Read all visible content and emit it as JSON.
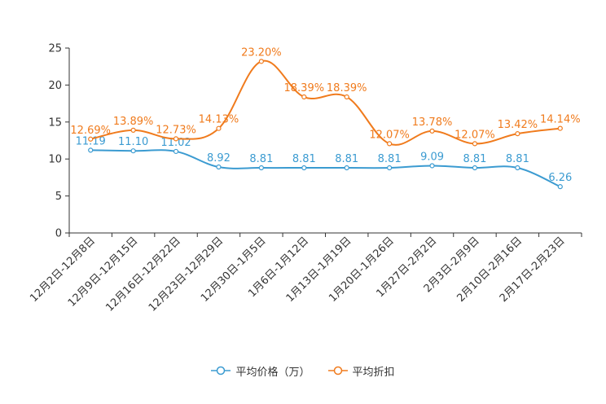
{
  "chart_data": {
    "type": "line",
    "categories": [
      "12月2日-12月8日",
      "12月9日-12月15日",
      "12月16日-12月22日",
      "12月23日-12月29日",
      "12月30日-1月5日",
      "1月6日-1月12日",
      "1月13日-1月19日",
      "1月20日-1月26日",
      "1月27日-2月2日",
      "2月3日-2月9日",
      "2月10日-2月16日",
      "2月17日-2月23日"
    ],
    "ylim": [
      0,
      25
    ],
    "yticks": [
      "0",
      "5",
      "10",
      "15",
      "20",
      "25"
    ],
    "ytick_values": [
      0,
      5,
      10,
      15,
      20,
      25
    ],
    "series": [
      {
        "name": "平均价格（万）",
        "color": "#3b9bd1",
        "values": [
          11.19,
          11.1,
          11.02,
          8.92,
          8.81,
          8.81,
          8.81,
          8.81,
          9.09,
          8.81,
          8.81,
          6.26
        ],
        "labels": [
          "11.19",
          "11.10",
          "11.02",
          "8.92",
          "8.81",
          "8.81",
          "8.81",
          "8.81",
          "9.09",
          "8.81",
          "8.81",
          "6.26"
        ]
      },
      {
        "name": "平均折扣",
        "color": "#f07b1d",
        "values": [
          12.69,
          13.89,
          12.73,
          14.13,
          23.2,
          18.39,
          18.39,
          12.07,
          13.78,
          12.07,
          13.42,
          14.14
        ],
        "labels": [
          "12.69%",
          "13.89%",
          "12.73%",
          "14.13%",
          "23.20%",
          "18.39%",
          "18.39%",
          "12.07%",
          "13.78%",
          "12.07%",
          "13.42%",
          "14.14%"
        ]
      }
    ]
  }
}
